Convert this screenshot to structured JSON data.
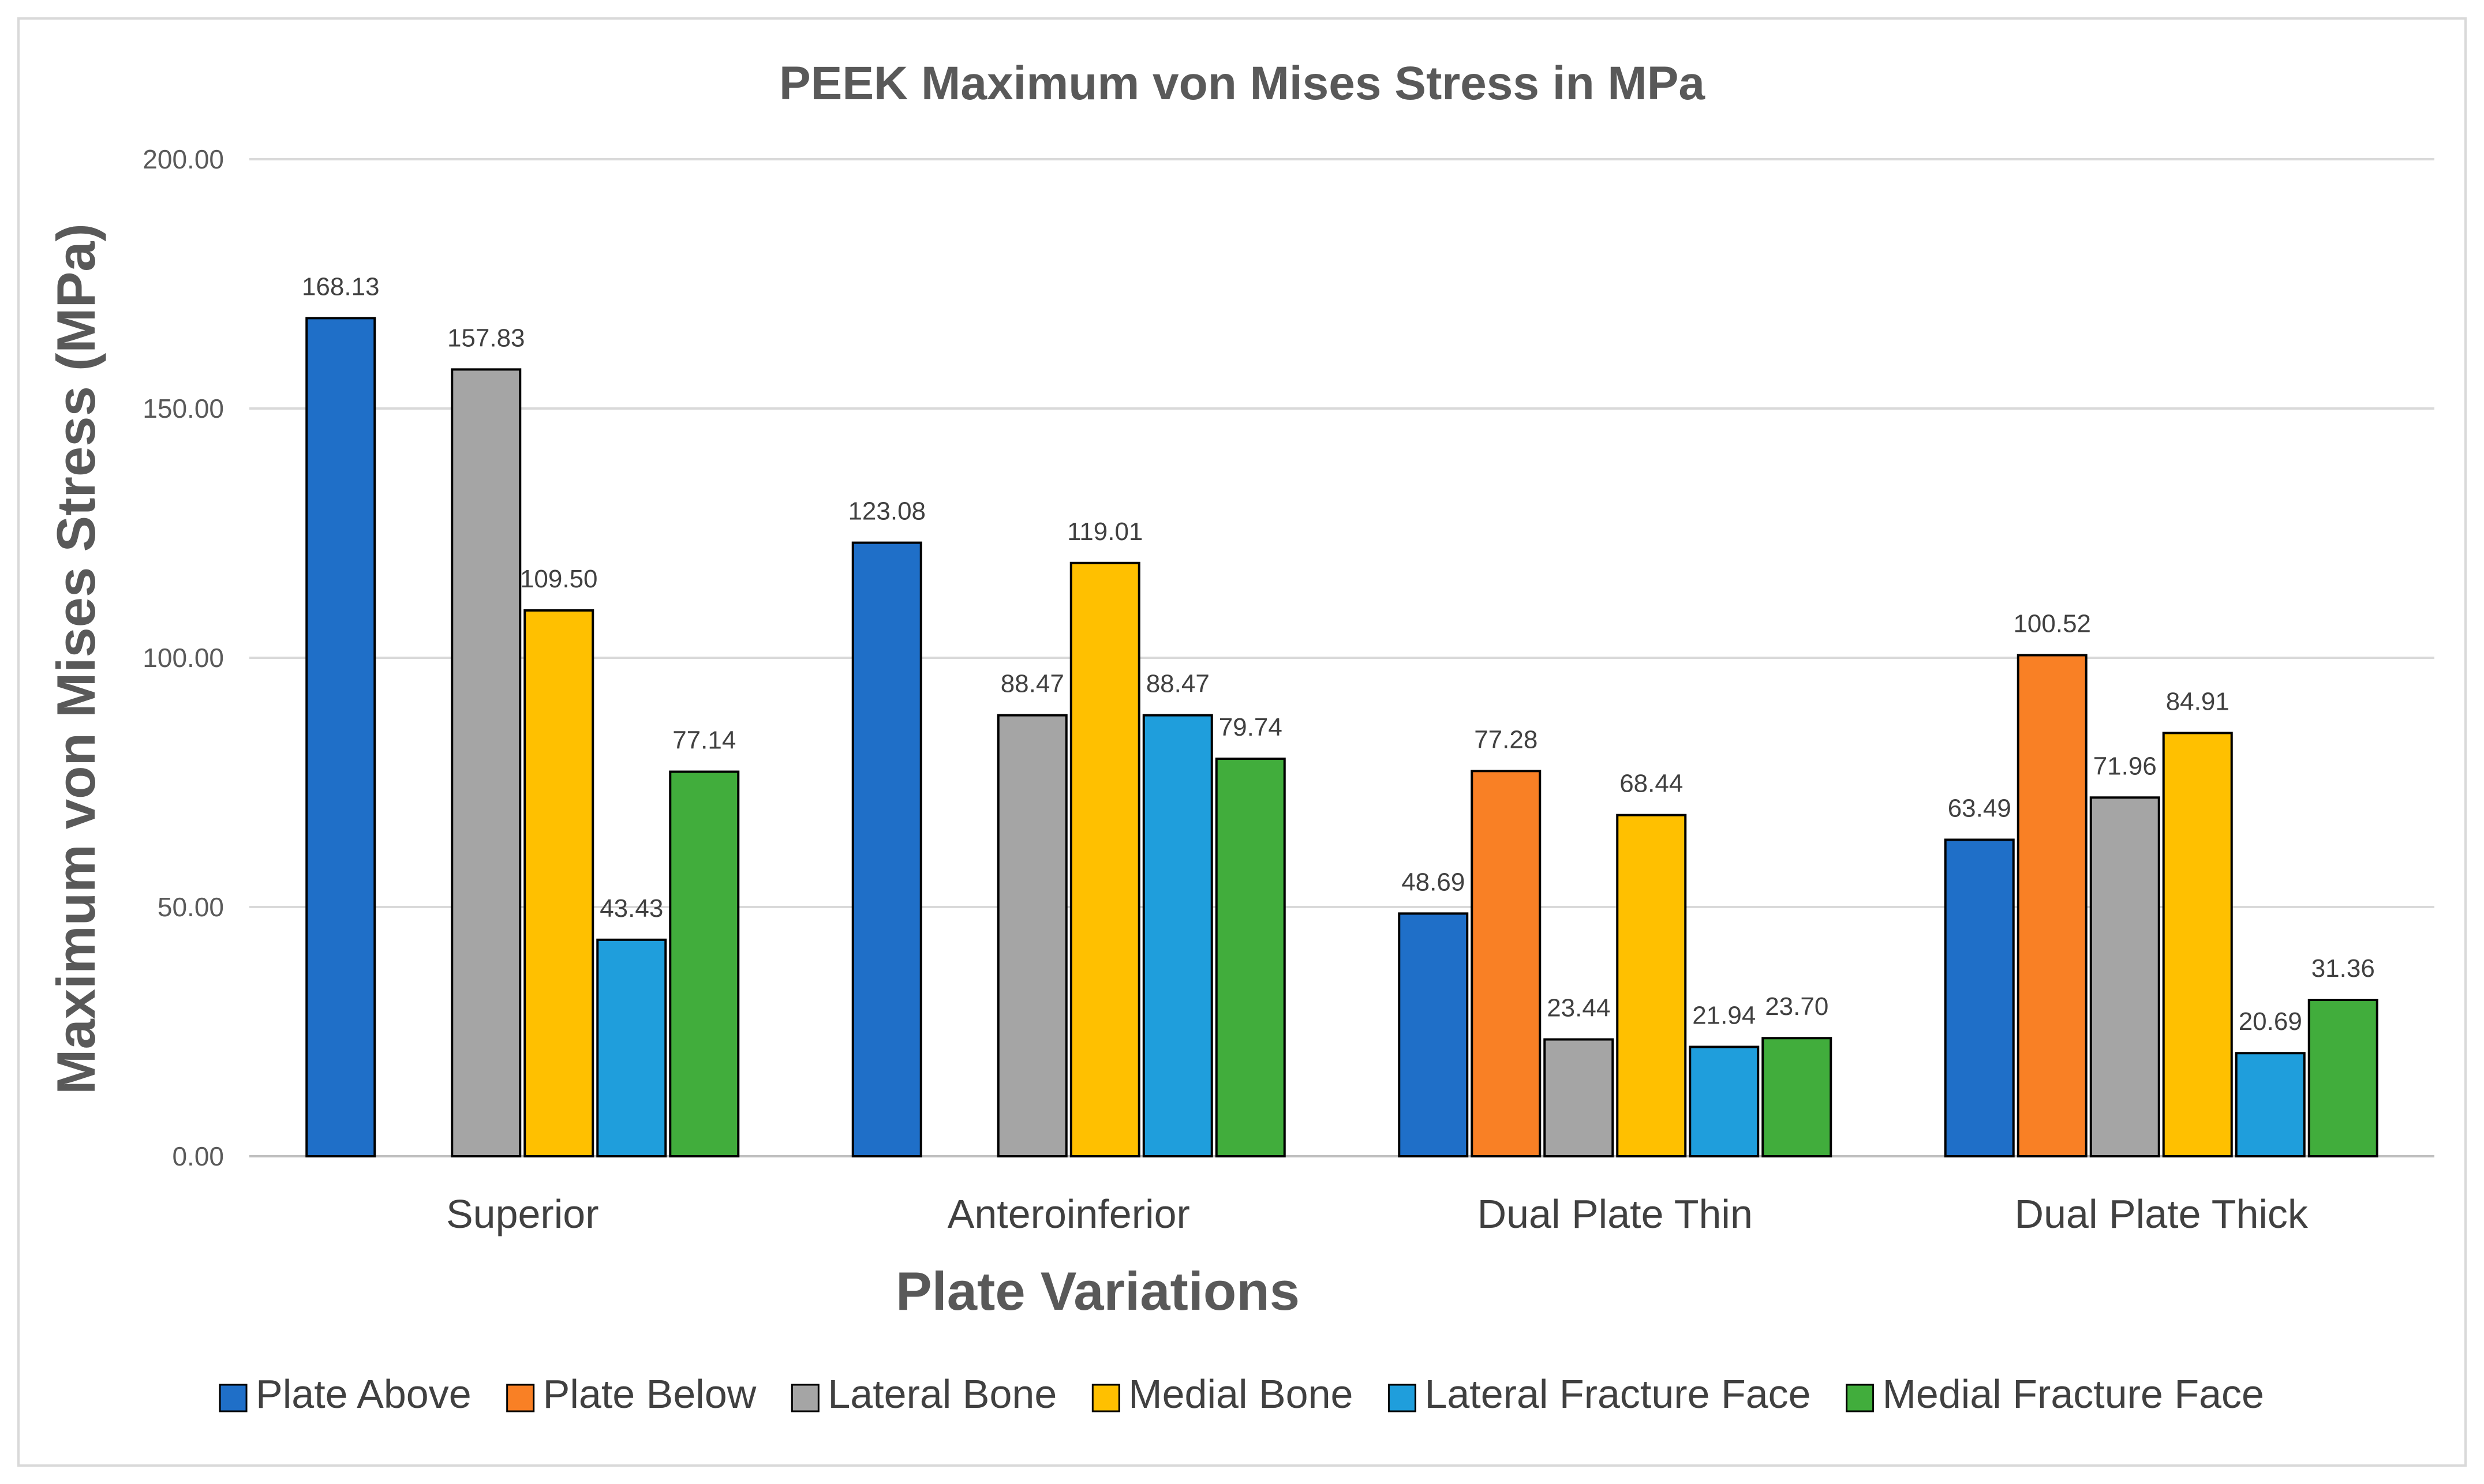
{
  "chart_data": {
    "type": "bar",
    "title": "PEEK Maximum von Mises Stress in MPa",
    "xlabel": "Plate Variations",
    "ylabel": "Maximum von Mises Stress (MPa)",
    "ylim": [
      0,
      200
    ],
    "yticks": [
      0,
      50,
      100,
      150,
      200
    ],
    "ytick_labels": [
      "0.00",
      "50.00",
      "100.00",
      "150.00",
      "200.00"
    ],
    "grid": true,
    "legend_position": "bottom",
    "categories": [
      "Superior",
      "Anteroinferior",
      "Dual Plate Thin",
      "Dual Plate Thick"
    ],
    "series": [
      {
        "name": "Plate Above",
        "color": "#1F6FC8",
        "values": [
          168.13,
          123.08,
          48.69,
          63.49
        ],
        "labels": [
          "168.13",
          "123.08",
          "48.69",
          "63.49"
        ]
      },
      {
        "name": "Plate Below",
        "color": "#F98025",
        "values": [
          null,
          null,
          77.28,
          100.52
        ],
        "labels": [
          "",
          "",
          "77.28",
          "100.52"
        ]
      },
      {
        "name": "Lateral Bone",
        "color": "#A5A5A5",
        "values": [
          157.83,
          88.47,
          23.44,
          71.96
        ],
        "labels": [
          "157.83",
          "88.47",
          "23.44",
          "71.96"
        ]
      },
      {
        "name": "Medial Bone",
        "color": "#FFC000",
        "values": [
          109.5,
          119.01,
          68.44,
          84.91
        ],
        "labels": [
          "109.50",
          "119.01",
          "68.44",
          "84.91"
        ]
      },
      {
        "name": "Lateral Fracture Face",
        "color": "#1F9EDC",
        "values": [
          43.43,
          88.47,
          21.94,
          20.69
        ],
        "labels": [
          "43.43",
          "88.47",
          "21.94",
          "20.69"
        ]
      },
      {
        "name": "Medial Fracture Face",
        "color": "#41AD3C",
        "values": [
          77.14,
          79.74,
          23.7,
          31.36
        ],
        "labels": [
          "77.14",
          "79.74",
          "23.70",
          "31.36"
        ]
      }
    ]
  }
}
